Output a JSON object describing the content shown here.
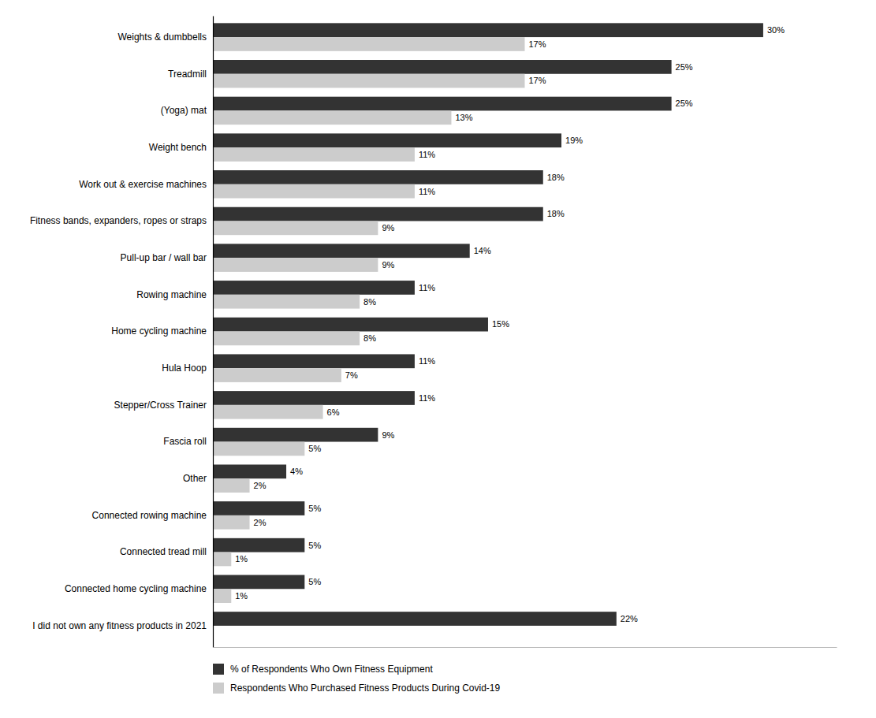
{
  "chart_data": {
    "type": "bar",
    "orientation": "horizontal",
    "categories": [
      "I did not own any fitness products in 2021",
      "Connected home cycling machine",
      "Connected tread mill",
      "Connected rowing machine",
      "Other",
      "Fascia roll",
      "Stepper/Cross Trainer",
      "Hula Hoop",
      "Home cycling machine",
      "Rowing machine",
      "Pull-up bar / wall bar",
      "Fitness bands, expanders, ropes or straps",
      "Work out & exercise machines",
      "Weight bench",
      "(Yoga) mat",
      "Treadmill",
      "Weights & dumbbells"
    ],
    "series": [
      {
        "name": "% of Respondents Who Own Fitness Equipment",
        "color": "#333333",
        "values": [
          22,
          5,
          5,
          5,
          4,
          9,
          11,
          11,
          15,
          11,
          14,
          18,
          18,
          19,
          25,
          25,
          30
        ],
        "value_labels": [
          "22%",
          "5%",
          "5%",
          "5%",
          "4%",
          "9%",
          "11%",
          "11%",
          "15%",
          "11%",
          "14%",
          "18%",
          "18%",
          "19%",
          "25%",
          "25%",
          "30%"
        ]
      },
      {
        "name": "Respondents Who Purchased Fitness Products During Covid-19",
        "color": "#cccccc",
        "values": [
          null,
          1,
          1,
          2,
          2,
          5,
          6,
          7,
          8,
          8,
          9,
          9,
          11,
          11,
          13,
          17,
          17
        ],
        "value_labels": [
          null,
          "1%",
          "1%",
          "2%",
          "2%",
          "5%",
          "6%",
          "7%",
          "8%",
          "8%",
          "9%",
          "9%",
          "11%",
          "11%",
          "13%",
          "17%",
          "17%"
        ]
      }
    ],
    "xlim": [
      0,
      34
    ],
    "data_labels": true,
    "tick_labels": "y",
    "grid": false,
    "legend": "bottom"
  }
}
